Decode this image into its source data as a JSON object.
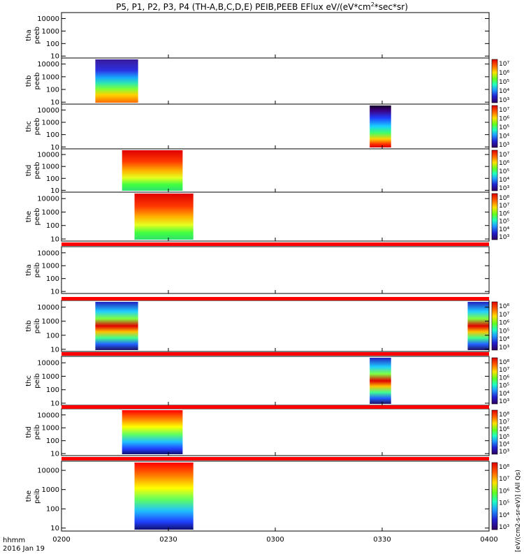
{
  "chart_data": {
    "type": "heatmap",
    "title_parts": {
      "pre": "P5, P1, P2, P3, P4 (TH-A,B,C,D,E) PEIB,PEEB EFlux eV/(eV*cm",
      "sup": "2",
      "post": "*sec*sr)"
    },
    "ylim": [
      7,
      30000
    ],
    "yscale": "log",
    "y_ticks": [
      10,
      100,
      1000,
      10000
    ],
    "y_tick_labels": [
      "10",
      "100",
      "1000",
      "10000"
    ],
    "x_tick_labels": [
      "0200",
      "0230",
      "0300",
      "0330",
      "0400"
    ],
    "x_ticks_min": [
      0,
      30,
      60,
      90,
      120
    ],
    "xlim_min": [
      0,
      120
    ],
    "x_origin_label": "hhmm",
    "date_label": "2016 Jan 19",
    "colorbar": {
      "label": "[eV/(cm2-s-sr-eV)] (All Qs)",
      "tick_labels_top": [
        "10⁸",
        "10⁷",
        "10⁶",
        "10⁵",
        "10⁴",
        "10³"
      ],
      "tick_labels_bottom": [
        "10⁷",
        "10⁶",
        "10⁵",
        "10⁴",
        "10³"
      ]
    },
    "panels": [
      {
        "label1": "tha",
        "label2": "peeb",
        "colorbar": false,
        "red_band": false,
        "blocks": []
      },
      {
        "label1": "thb",
        "label2": "peeb",
        "colorbar": true,
        "red_band": false,
        "blocks": [
          {
            "start": 9.5,
            "end": 21.5,
            "palette": "cool_warm"
          }
        ]
      },
      {
        "label1": "thc",
        "label2": "peeb",
        "colorbar": true,
        "red_band": false,
        "blocks": [
          {
            "start": 86.5,
            "end": 92.5,
            "palette": "dark_top_red_bottom"
          }
        ]
      },
      {
        "label1": "thd",
        "label2": "peeb",
        "colorbar": true,
        "red_band": false,
        "blocks": [
          {
            "start": 17,
            "end": 34,
            "palette": "red_top"
          }
        ]
      },
      {
        "label1": "the",
        "label2": "peeb",
        "colorbar": true,
        "red_band": true,
        "blocks": [
          {
            "start": 20.5,
            "end": 37,
            "palette": "red_top"
          }
        ]
      },
      {
        "label1": "tha",
        "label2": "peib",
        "colorbar": false,
        "red_band": true,
        "blocks": []
      },
      {
        "label1": "thb",
        "label2": "peib",
        "colorbar": true,
        "red_band": true,
        "blocks": [
          {
            "start": 9.5,
            "end": 21.5,
            "palette": "ion_mid"
          },
          {
            "start": 114,
            "end": 120,
            "palette": "ion_mid"
          }
        ]
      },
      {
        "label1": "thc",
        "label2": "peib",
        "colorbar": true,
        "red_band": true,
        "blocks": [
          {
            "start": 86.5,
            "end": 92.5,
            "palette": "ion_mid"
          }
        ]
      },
      {
        "label1": "thd",
        "label2": "peib",
        "colorbar": true,
        "red_band": true,
        "blocks": [
          {
            "start": 17,
            "end": 34,
            "palette": "ion_low_blue"
          }
        ]
      },
      {
        "label1": "the",
        "label2": "peib",
        "colorbar": true,
        "red_band": false,
        "blocks": [
          {
            "start": 20.5,
            "end": 37,
            "palette": "ion_low_blue"
          }
        ]
      }
    ]
  },
  "colors": {
    "red_band": "#ff0000"
  }
}
